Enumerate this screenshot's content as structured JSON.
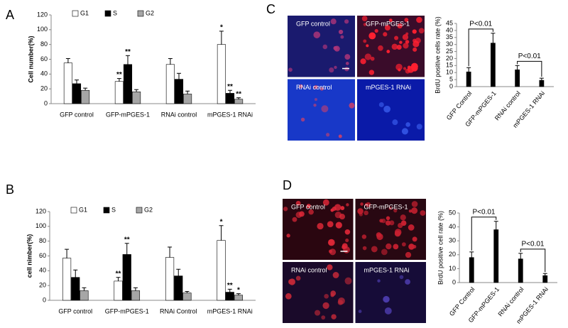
{
  "chart_data": [
    {
      "type": "bar",
      "panel": "A",
      "ylabel": "Cell number(%)",
      "categories": [
        "GFP control",
        "GFP-mPGES-1",
        "RNAi control",
        "mPGES-1 RNAi"
      ],
      "series": [
        {
          "name": "G1",
          "color": "#ffffff",
          "values": [
            55,
            30,
            53,
            80
          ],
          "errors": [
            6,
            4,
            8,
            18
          ],
          "stars": [
            null,
            "**",
            null,
            "*"
          ]
        },
        {
          "name": "S",
          "color": "#000000",
          "values": [
            27,
            53,
            33,
            14
          ],
          "errors": [
            5,
            12,
            8,
            4
          ],
          "stars": [
            null,
            "**",
            null,
            "**"
          ]
        },
        {
          "name": "G2",
          "color": "#a6a6a6",
          "values": [
            18,
            16,
            13,
            6
          ],
          "errors": [
            3,
            3,
            4,
            2
          ],
          "stars": [
            null,
            null,
            null,
            "**"
          ]
        }
      ],
      "ylim": [
        0,
        120
      ],
      "yticks": [
        0,
        20,
        40,
        60,
        80,
        100,
        120
      ]
    },
    {
      "type": "bar",
      "panel": "B",
      "ylabel": "cell nimber(%)",
      "categories": [
        "GFP control",
        "GFP-mPGES-1",
        "RNAi Control",
        "mPGES-1 RNAi"
      ],
      "series": [
        {
          "name": "G1",
          "color": "#ffffff",
          "values": [
            57,
            26,
            58,
            81
          ],
          "errors": [
            12,
            5,
            14,
            20
          ],
          "stars": [
            null,
            "**",
            null,
            "*"
          ]
        },
        {
          "name": "S",
          "color": "#000000",
          "values": [
            31,
            62,
            33,
            11
          ],
          "errors": [
            10,
            15,
            9,
            4
          ],
          "stars": [
            null,
            "**",
            null,
            "**"
          ]
        },
        {
          "name": "G2",
          "color": "#a6a6a6",
          "values": [
            13,
            13,
            10,
            7
          ],
          "errors": [
            4,
            4,
            2,
            2
          ],
          "stars": [
            null,
            null,
            null,
            "*"
          ]
        }
      ],
      "ylim": [
        0,
        120
      ],
      "yticks": [
        0,
        20,
        40,
        60,
        80,
        100,
        120
      ]
    },
    {
      "type": "bar",
      "panel": "C",
      "ylabel": "BrdU positive cells rate (%)",
      "images": [
        "GFP control",
        "GFP-mPGES-1",
        "RNAi control",
        "mPGES-1 RNAi"
      ],
      "categories": [
        "GFP Control",
        "GFP-mPGES-1",
        "RNAi control",
        "mPGES-1 RNAi"
      ],
      "values": [
        10.5,
        31,
        12,
        4.5
      ],
      "errors": [
        3,
        7,
        3,
        1.5
      ],
      "color": "#000000",
      "annotations": [
        "P<0.01",
        "P<0.01"
      ],
      "ylim": [
        0,
        45
      ],
      "yticks": [
        0,
        5,
        10,
        15,
        20,
        25,
        30,
        35,
        40,
        45
      ]
    },
    {
      "type": "bar",
      "panel": "D",
      "ylabel": "BrdU positive cell rate (%)",
      "images": [
        "GFP control",
        "GFP-mPGES-1",
        "RNAi control",
        "mPGES-1 RNAi"
      ],
      "categories": [
        "GFP Control",
        "GFP-mPGES-1",
        "RNAi control",
        "mPGES-1 RNAi"
      ],
      "values": [
        18,
        38,
        17,
        5
      ],
      "errors": [
        4,
        6,
        4,
        1.5
      ],
      "color": "#000000",
      "annotations": [
        "P<0.01",
        "P<0.01"
      ],
      "ylim": [
        0,
        50
      ],
      "yticks": [
        0,
        10,
        20,
        30,
        40,
        50
      ]
    }
  ]
}
